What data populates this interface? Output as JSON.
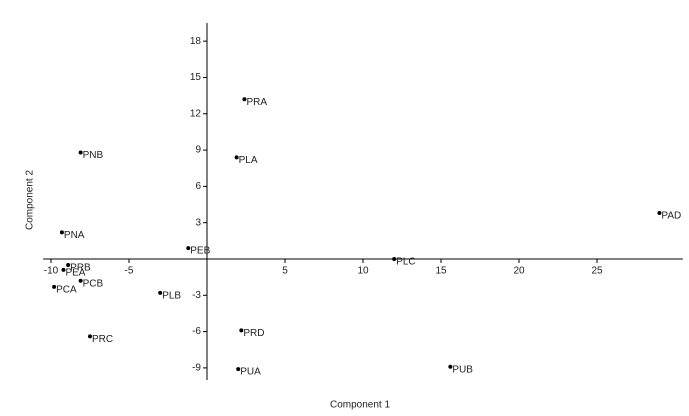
{
  "chart_data": {
    "type": "scatter",
    "xlabel": "Component 1",
    "ylabel": "Component 2",
    "color": "#000000",
    "point_labels": [
      "PRA",
      "PLA",
      "PNB",
      "PAD",
      "PNA",
      "PEB",
      "PLC",
      "PRB",
      "PEA",
      "PCB",
      "PCA",
      "PLB",
      "PRD",
      "PRC",
      "PUA",
      "PUB"
    ],
    "x": [
      2.4,
      1.9,
      -8.1,
      29.0,
      -9.3,
      -1.2,
      12.0,
      -8.9,
      -9.2,
      -8.1,
      -9.8,
      -3.0,
      2.2,
      -7.5,
      2.0,
      15.6
    ],
    "y": [
      13.2,
      8.4,
      8.8,
      3.8,
      2.2,
      0.9,
      0.0,
      -0.5,
      -0.9,
      -1.8,
      -2.3,
      -2.8,
      -5.9,
      -6.4,
      -9.1,
      -8.9
    ],
    "xlim": [
      -10.5,
      30.5
    ],
    "ylim": [
      -10,
      19.5
    ],
    "xticks": [
      -10,
      -5,
      5,
      10,
      15,
      20,
      25
    ],
    "yticks": [
      18,
      15,
      12,
      9,
      6,
      3,
      -3,
      -6,
      -9
    ]
  }
}
